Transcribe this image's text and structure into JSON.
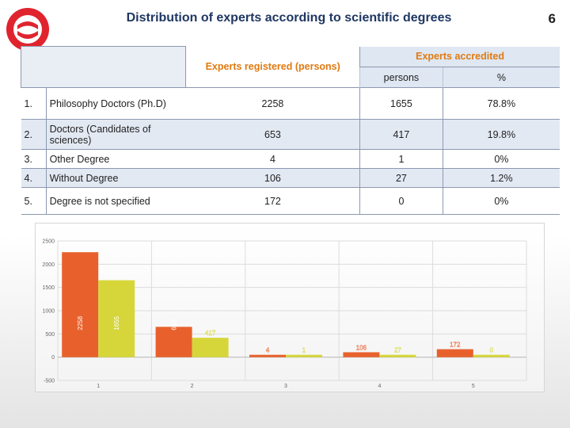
{
  "slide": {
    "title": "Distribution of experts according to scientific degrees",
    "page_number": "6"
  },
  "table": {
    "header_registered": "Experts registered (persons)",
    "header_accredited": "Experts accredited",
    "header_persons": "persons",
    "header_percent": "%",
    "rows": [
      {
        "num": "1.",
        "label": "Philosophy Doctors (Ph.D)",
        "registered": "2258",
        "accredited": "1655",
        "percent": "78.8%"
      },
      {
        "num": "2.",
        "label": "Doctors (Candidates of sciences)",
        "registered": "653",
        "accredited": "417",
        "percent": "19.8%"
      },
      {
        "num": "3.",
        "label": "Other Degree",
        "registered": "4",
        "accredited": "1",
        "percent": "0%"
      },
      {
        "num": "4.",
        "label": "Without Degree",
        "registered": "106",
        "accredited": "27",
        "percent": "1.2%"
      },
      {
        "num": "5.",
        "label": "Degree is not specified",
        "registered": "172",
        "accredited": "0",
        "percent": "0%"
      }
    ]
  },
  "chart_data": {
    "type": "bar",
    "categories": [
      "1",
      "2",
      "3",
      "4",
      "5"
    ],
    "series": [
      {
        "name": "",
        "values": [
          2258,
          653,
          4,
          106,
          172
        ],
        "color": "#e8612c"
      },
      {
        "name": "",
        "values": [
          1655,
          417,
          1,
          27,
          0
        ],
        "color": "#d6d63a"
      }
    ],
    "y_ticks": [
      "-500",
      "0",
      "500",
      "1000",
      "1500",
      "2000",
      "2500"
    ],
    "ylim": [
      -500,
      2500
    ],
    "grid": true,
    "xlabel": "",
    "ylabel": "",
    "title": ""
  }
}
